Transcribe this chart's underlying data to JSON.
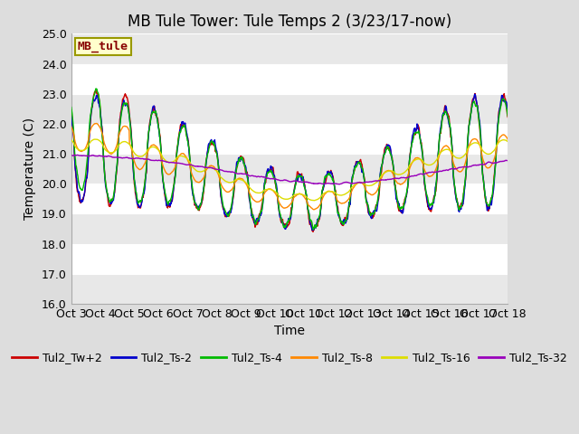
{
  "title": "MB Tule Tower: Tule Temps 2 (3/23/17-now)",
  "xlabel": "Time",
  "ylabel": "Temperature (C)",
  "ylim": [
    16.0,
    25.0
  ],
  "yticks": [
    16.0,
    17.0,
    18.0,
    19.0,
    20.0,
    21.0,
    22.0,
    23.0,
    24.0,
    25.0
  ],
  "xtick_labels": [
    "Oct 3",
    "Oct 4",
    "Oct 5",
    "Oct 6",
    "Oct 7",
    "Oct 8",
    "Oct 9",
    "Oct 10",
    "Oct 11",
    "Oct 12",
    "Oct 13",
    "Oct 14",
    "Oct 15",
    "Oct 16",
    "Oct 17",
    "Oct 18"
  ],
  "n_days": 15,
  "series": [
    {
      "label": "Tul2_Tw+2",
      "color": "#cc0000",
      "lw": 1.0
    },
    {
      "label": "Tul2_Ts-2",
      "color": "#0000cc",
      "lw": 1.0
    },
    {
      "label": "Tul2_Ts-4",
      "color": "#00bb00",
      "lw": 1.0
    },
    {
      "label": "Tul2_Ts-8",
      "color": "#ff8800",
      "lw": 1.0
    },
    {
      "label": "Tul2_Ts-16",
      "color": "#dddd00",
      "lw": 1.0
    },
    {
      "label": "Tul2_Ts-32",
      "color": "#9900bb",
      "lw": 1.0
    }
  ],
  "legend_box": {
    "facecolor": "#ffffcc",
    "edgecolor": "#999900",
    "label": "MB_tule",
    "text_color": "#880000"
  },
  "bg_color": "#dddddd",
  "stripe_color": "#e8e8e8",
  "title_fontsize": 12,
  "axis_label_fontsize": 10,
  "tick_fontsize": 9,
  "legend_fontsize": 9
}
